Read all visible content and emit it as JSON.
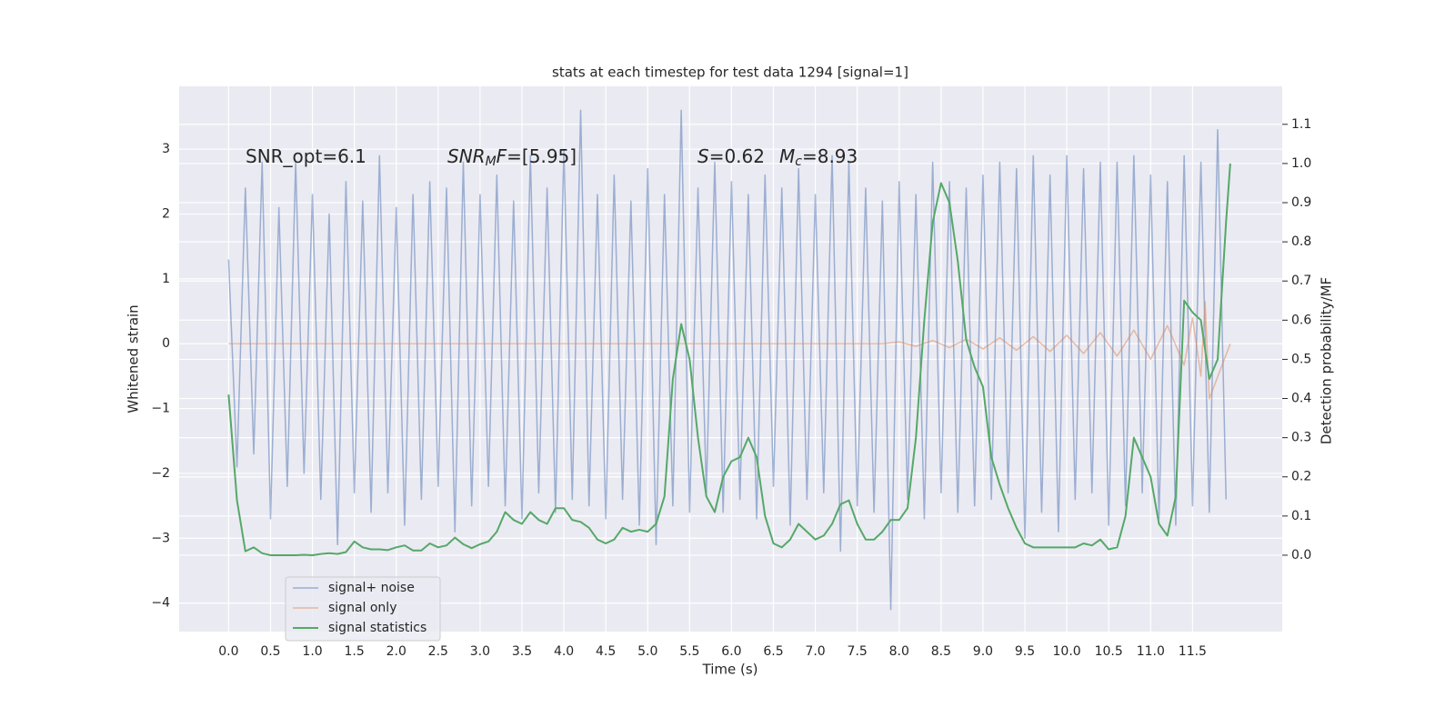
{
  "chart_data": {
    "type": "line",
    "title": "stats at each timestep for test data 1294 [signal=1]",
    "xlabel": "Time (s)",
    "ylabel": "Whitened strain",
    "y2label": "Detection probability/MF",
    "annotations": [
      [
        "SNR_opt=6.1"
      ],
      [
        "SNR",
        "M",
        "F",
        "=[5.95]"
      ],
      [
        "S",
        "=0.62",
        "M",
        "c",
        "=8.93"
      ]
    ],
    "grid": true,
    "legend": "lower left",
    "xlim": [
      -0.59,
      12.57
    ],
    "ylim": [
      -4.44,
      3.97
    ],
    "y2lim": [
      -0.195,
      1.197
    ],
    "xticks": [
      {
        "value": 0,
        "label": "0.0"
      },
      0.5,
      {
        "value": 1,
        "label": "1.0"
      },
      1.5,
      {
        "value": 2,
        "label": "2.0"
      },
      2.5,
      {
        "value": 3,
        "label": "3.0"
      },
      3.5,
      {
        "value": 4,
        "label": "4.0"
      },
      4.5,
      {
        "value": 5,
        "label": "5.0"
      },
      5.5,
      {
        "value": 6,
        "label": "6.0"
      },
      6.5,
      {
        "value": 7,
        "label": "7.0"
      },
      7.5,
      {
        "value": 8,
        "label": "8.0"
      },
      8.5,
      {
        "value": 9,
        "label": "9.0"
      },
      9.5,
      {
        "value": 10,
        "label": "10.0"
      },
      10.5,
      {
        "value": 11,
        "label": "11.0"
      },
      11.5
    ],
    "yticks": [
      {
        "value": -4,
        "label": "−4"
      },
      {
        "value": -3,
        "label": "−3"
      },
      {
        "value": -2,
        "label": "−2"
      },
      {
        "value": -1,
        "label": "−1"
      },
      0,
      1,
      2,
      3
    ],
    "y2ticks": [
      {
        "value": 0,
        "label": "0.0"
      },
      0.1,
      0.2,
      0.3,
      0.4,
      0.5,
      0.6,
      0.7,
      0.8,
      0.9,
      {
        "value": 1,
        "label": "1.0"
      },
      1.1
    ],
    "series": [
      {
        "name": "signal+ noise",
        "color": "#4c72b0",
        "opacity": 0.5,
        "x": [
          0.0,
          0.1,
          0.2,
          0.3,
          0.4,
          0.5,
          0.6,
          0.7,
          0.8,
          0.9,
          1.0,
          1.1,
          1.2,
          1.3,
          1.4,
          1.5,
          1.6,
          1.7,
          1.8,
          1.9,
          2.0,
          2.1,
          2.2,
          2.3,
          2.4,
          2.5,
          2.6,
          2.7,
          2.8,
          2.9,
          3.0,
          3.1,
          3.2,
          3.3,
          3.4,
          3.5,
          3.6,
          3.7,
          3.8,
          3.9,
          4.0,
          4.1,
          4.2,
          4.3,
          4.4,
          4.5,
          4.6,
          4.7,
          4.8,
          4.9,
          5.0,
          5.1,
          5.2,
          5.3,
          5.4,
          5.5,
          5.6,
          5.7,
          5.8,
          5.9,
          6.0,
          6.1,
          6.2,
          6.3,
          6.4,
          6.5,
          6.6,
          6.7,
          6.8,
          6.9,
          7.0,
          7.1,
          7.2,
          7.3,
          7.4,
          7.5,
          7.6,
          7.7,
          7.8,
          7.9,
          8.0,
          8.1,
          8.2,
          8.3,
          8.4,
          8.5,
          8.6,
          8.7,
          8.8,
          8.9,
          9.0,
          9.1,
          9.2,
          9.3,
          9.4,
          9.5,
          9.6,
          9.7,
          9.8,
          9.9,
          10.0,
          10.1,
          10.2,
          10.3,
          10.4,
          10.5,
          10.6,
          10.7,
          10.8,
          10.9,
          11.0,
          11.1,
          11.2,
          11.3,
          11.4,
          11.5,
          11.6,
          11.7,
          11.8,
          11.9
        ],
        "values": [
          1.3,
          -1.9,
          2.4,
          -1.7,
          2.8,
          -2.7,
          2.1,
          -2.2,
          2.8,
          -2.0,
          2.3,
          -2.4,
          2.0,
          -3.1,
          2.5,
          -2.3,
          2.2,
          -2.6,
          2.9,
          -2.3,
          2.1,
          -2.8,
          2.3,
          -2.4,
          2.5,
          -2.2,
          2.4,
          -2.9,
          2.8,
          -2.5,
          2.3,
          -2.2,
          2.6,
          -2.5,
          2.2,
          -2.7,
          2.9,
          -2.3,
          2.4,
          -2.6,
          3.0,
          -2.4,
          3.6,
          -2.5,
          2.3,
          -2.7,
          2.6,
          -2.4,
          2.2,
          -2.8,
          2.7,
          -3.1,
          2.3,
          -2.5,
          3.6,
          -2.6,
          2.4,
          -2.3,
          2.8,
          -2.6,
          2.5,
          -2.4,
          2.3,
          -2.7,
          2.6,
          -2.2,
          2.4,
          -2.8,
          2.7,
          -2.4,
          2.3,
          -2.3,
          2.9,
          -3.2,
          2.8,
          -2.5,
          2.4,
          -2.6,
          2.2,
          -4.1,
          2.5,
          -2.4,
          2.3,
          -2.7,
          2.8,
          -2.3,
          2.5,
          -2.6,
          2.4,
          -2.5,
          2.6,
          -2.4,
          2.8,
          -2.3,
          2.7,
          -3.0,
          2.9,
          -2.6,
          2.6,
          -2.9,
          2.9,
          -2.4,
          2.7,
          -2.3,
          2.8,
          -2.8,
          2.8,
          -2.5,
          2.9,
          -2.3,
          2.6,
          -2.7,
          2.5,
          -2.8,
          2.9,
          -2.5,
          2.8,
          -2.6,
          3.3,
          -2.4
        ]
      },
      {
        "name": "signal only",
        "color": "#dd8452",
        "opacity": 0.5,
        "x": [
          0.0,
          7.8,
          8.0,
          8.2,
          8.4,
          8.6,
          8.8,
          9.0,
          9.2,
          9.4,
          9.6,
          9.8,
          10.0,
          10.2,
          10.4,
          10.6,
          10.8,
          11.0,
          11.2,
          11.4,
          11.5,
          11.6,
          11.65,
          11.7,
          11.95
        ],
        "values": [
          0.0,
          0.0,
          0.03,
          -0.04,
          0.05,
          -0.06,
          0.07,
          -0.08,
          0.09,
          -0.1,
          0.11,
          -0.12,
          0.13,
          -0.15,
          0.17,
          -0.19,
          0.21,
          -0.24,
          0.28,
          -0.33,
          0.4,
          -0.5,
          0.65,
          -0.85,
          0.0
        ]
      },
      {
        "name": "signal statistics",
        "color": "#55a868",
        "axis": "y2",
        "x": [
          0.0,
          0.1,
          0.2,
          0.3,
          0.4,
          0.5,
          0.6,
          0.7,
          0.8,
          0.9,
          1.0,
          1.1,
          1.2,
          1.3,
          1.4,
          1.5,
          1.6,
          1.7,
          1.8,
          1.9,
          2.0,
          2.1,
          2.2,
          2.3,
          2.4,
          2.5,
          2.6,
          2.7,
          2.8,
          2.9,
          3.0,
          3.1,
          3.2,
          3.3,
          3.4,
          3.5,
          3.6,
          3.7,
          3.8,
          3.9,
          4.0,
          4.1,
          4.2,
          4.3,
          4.4,
          4.5,
          4.6,
          4.7,
          4.8,
          4.9,
          5.0,
          5.1,
          5.2,
          5.3,
          5.4,
          5.5,
          5.6,
          5.7,
          5.8,
          5.9,
          6.0,
          6.1,
          6.2,
          6.3,
          6.4,
          6.5,
          6.6,
          6.7,
          6.8,
          6.9,
          7.0,
          7.1,
          7.2,
          7.3,
          7.4,
          7.5,
          7.6,
          7.7,
          7.8,
          7.9,
          8.0,
          8.1,
          8.2,
          8.3,
          8.4,
          8.5,
          8.6,
          8.7,
          8.8,
          8.9,
          9.0,
          9.1,
          9.2,
          9.3,
          9.4,
          9.5,
          9.6,
          9.7,
          9.8,
          9.9,
          10.0,
          10.1,
          10.2,
          10.3,
          10.4,
          10.5,
          10.6,
          10.7,
          10.8,
          10.9,
          11.0,
          11.1,
          11.2,
          11.3,
          11.4,
          11.5,
          11.6,
          11.7,
          11.8,
          11.9,
          11.95
        ],
        "values": [
          0.41,
          0.14,
          0.01,
          0.02,
          0.005,
          0.0,
          0.0,
          0.0,
          0.0,
          0.001,
          0.0,
          0.003,
          0.005,
          0.003,
          0.008,
          0.035,
          0.02,
          0.015,
          0.015,
          0.013,
          0.02,
          0.025,
          0.012,
          0.012,
          0.03,
          0.02,
          0.025,
          0.045,
          0.028,
          0.018,
          0.028,
          0.035,
          0.06,
          0.11,
          0.09,
          0.08,
          0.11,
          0.09,
          0.08,
          0.12,
          0.12,
          0.09,
          0.085,
          0.07,
          0.04,
          0.03,
          0.04,
          0.07,
          0.06,
          0.065,
          0.06,
          0.08,
          0.15,
          0.45,
          0.59,
          0.5,
          0.3,
          0.15,
          0.11,
          0.2,
          0.24,
          0.25,
          0.3,
          0.25,
          0.1,
          0.03,
          0.02,
          0.04,
          0.08,
          0.06,
          0.04,
          0.05,
          0.08,
          0.13,
          0.14,
          0.08,
          0.04,
          0.04,
          0.06,
          0.09,
          0.09,
          0.12,
          0.3,
          0.6,
          0.85,
          0.95,
          0.9,
          0.75,
          0.55,
          0.48,
          0.43,
          0.25,
          0.18,
          0.12,
          0.07,
          0.03,
          0.02,
          0.02,
          0.02,
          0.02,
          0.02,
          0.02,
          0.03,
          0.025,
          0.04,
          0.015,
          0.02,
          0.1,
          0.3,
          0.25,
          0.2,
          0.08,
          0.05,
          0.15,
          0.65,
          0.62,
          0.6,
          0.45,
          0.5,
          0.85,
          1.0
        ]
      }
    ]
  }
}
